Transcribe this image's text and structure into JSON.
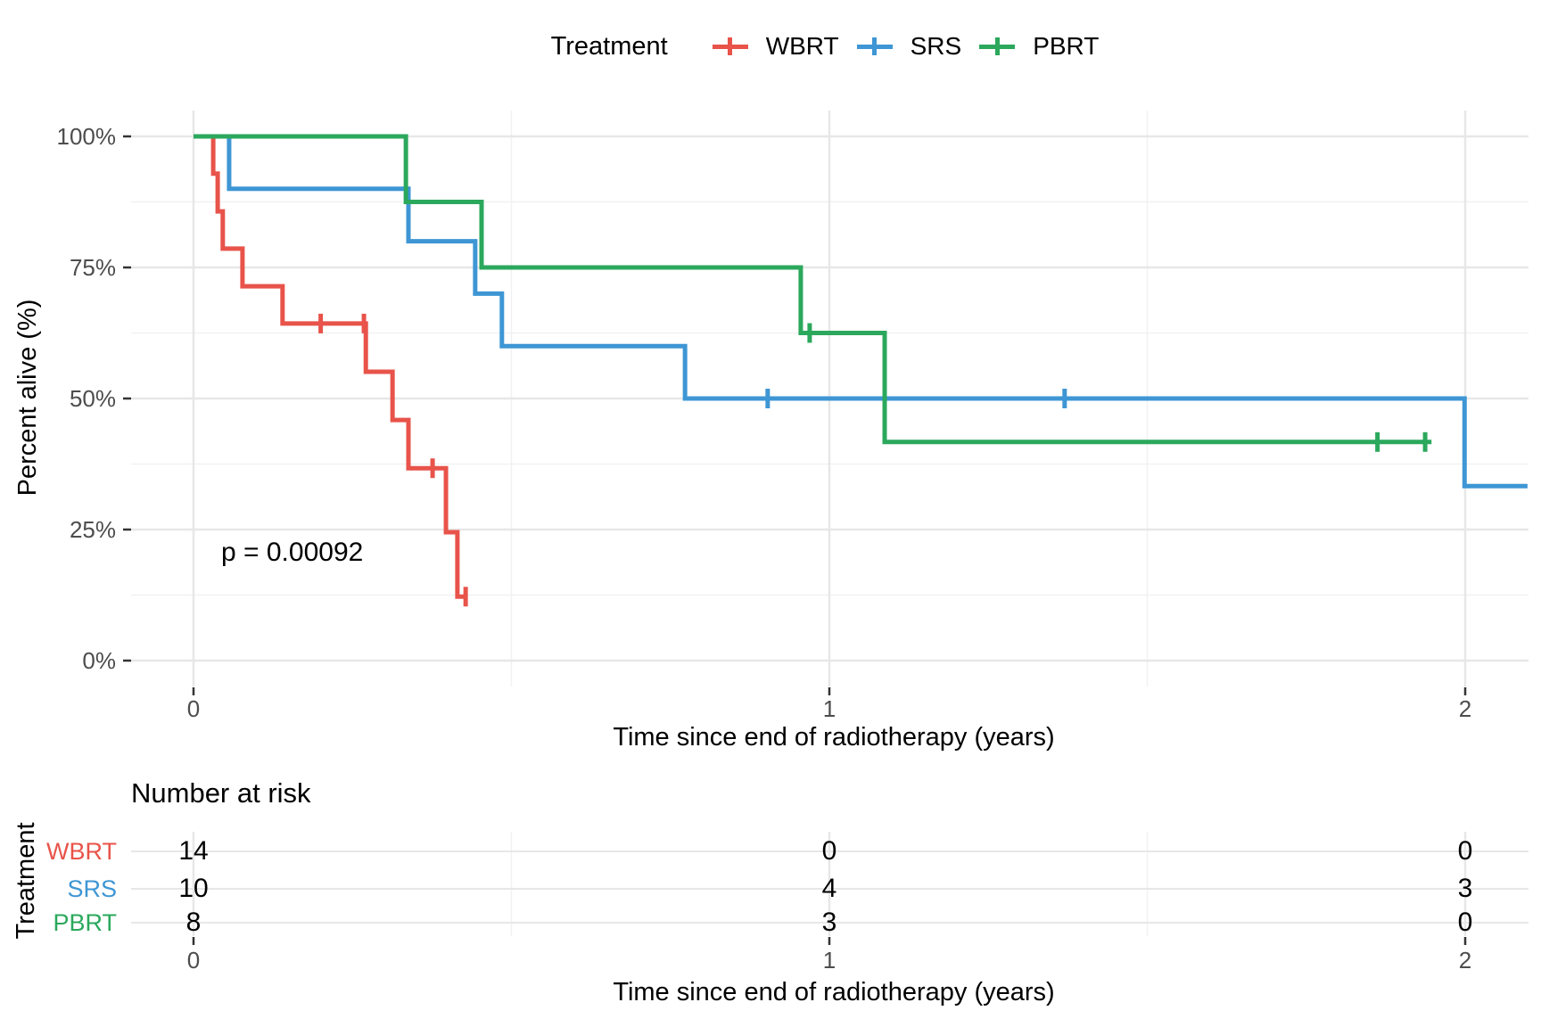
{
  "legend": {
    "title": "Treatment",
    "items": [
      {
        "label": "WBRT",
        "color": "#e8534a"
      },
      {
        "label": "SRS",
        "color": "#3e96d4"
      },
      {
        "label": "PBRT",
        "color": "#2ba85c"
      }
    ]
  },
  "chart_data": {
    "type": "line",
    "subtype": "kaplan-meier-step",
    "title": "",
    "xlabel": "Time since end of radiotherapy (years)",
    "ylabel": "Percent alive (%)",
    "xlim": [
      0,
      2.1
    ],
    "ylim": [
      0,
      100
    ],
    "grid": true,
    "legend_position": "top",
    "annotation": "p = 0.00092",
    "xticks": [
      {
        "value": 0,
        "label": "0"
      },
      {
        "value": 1,
        "label": "1"
      },
      {
        "value": 2,
        "label": "2"
      }
    ],
    "yticks": [
      {
        "value": 0,
        "label": "0%"
      },
      {
        "value": 25,
        "label": "25%"
      },
      {
        "value": 50,
        "label": "50%"
      },
      {
        "value": 75,
        "label": "75%"
      },
      {
        "value": 100,
        "label": "100%"
      }
    ],
    "minor_xticks": [
      0.5,
      1.5
    ],
    "minor_yticks": [
      12.5,
      37.5,
      62.5,
      87.5
    ],
    "series": [
      {
        "name": "WBRT",
        "color": "#e8534a",
        "start_percent": 100,
        "drops": [
          [
            0.031,
            92.9
          ],
          [
            0.038,
            85.7
          ],
          [
            0.046,
            78.6
          ],
          [
            0.077,
            71.4
          ],
          [
            0.14,
            64.3
          ],
          [
            0.271,
            55.1
          ],
          [
            0.313,
            45.9
          ],
          [
            0.338,
            36.7
          ],
          [
            0.397,
            24.5
          ],
          [
            0.415,
            12.2
          ]
        ],
        "end_time": 0.43,
        "censors": [
          [
            0.2,
            64.3
          ],
          [
            0.268,
            64.3
          ],
          [
            0.376,
            36.7
          ],
          [
            0.428,
            12.2
          ]
        ]
      },
      {
        "name": "SRS",
        "color": "#3e96d4",
        "start_percent": 100,
        "drops": [
          [
            0.056,
            90
          ],
          [
            0.338,
            80
          ],
          [
            0.443,
            70
          ],
          [
            0.485,
            60
          ],
          [
            0.773,
            50
          ],
          [
            1.999,
            33.3
          ]
        ],
        "end_time": 2.098,
        "censors": [
          [
            0.903,
            50
          ],
          [
            1.37,
            50
          ]
        ]
      },
      {
        "name": "PBRT",
        "color": "#2ba85c",
        "start_percent": 100,
        "drops": [
          [
            0.334,
            87.5
          ],
          [
            0.453,
            75
          ],
          [
            0.955,
            62.5
          ],
          [
            1.087,
            41.7
          ]
        ],
        "end_time": 1.947,
        "censors": [
          [
            0.969,
            62.5
          ],
          [
            1.862,
            41.7
          ],
          [
            1.937,
            41.7
          ]
        ]
      }
    ]
  },
  "annotation": {
    "p_value": "p = 0.00092"
  },
  "risk_table": {
    "title": "Number at risk",
    "axis_label": "Treatment",
    "xlabel": "Time since end of radiotherapy (years)",
    "xticks": [
      {
        "value": 0,
        "label": "0"
      },
      {
        "value": 1,
        "label": "1"
      },
      {
        "value": 2,
        "label": "2"
      }
    ],
    "rows": [
      {
        "label": "WBRT",
        "color": "#e8534a",
        "values": [
          "14",
          "0",
          "0"
        ]
      },
      {
        "label": "SRS",
        "color": "#3e96d4",
        "values": [
          "10",
          "4",
          "3"
        ]
      },
      {
        "label": "PBRT",
        "color": "#2ba85c",
        "values": [
          "8",
          "3",
          "0"
        ]
      }
    ]
  },
  "colors": {
    "grid_major": "#e7e7e7",
    "grid_minor": "#f1f1f1",
    "tick_mark": "#333333",
    "tick_text": "#4d4d4d"
  }
}
